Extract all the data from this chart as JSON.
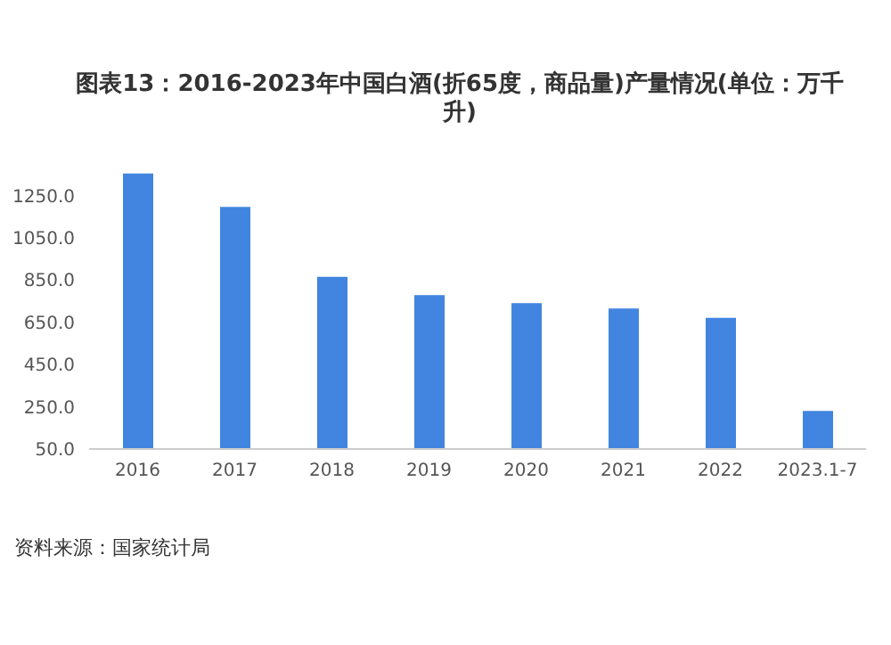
{
  "chart_data": {
    "type": "bar",
    "title": "图表13：2016-2023年中国白酒(折65度，商品量)产量情况(单位：万千升)",
    "categories": [
      "2016",
      "2017",
      "2018",
      "2019",
      "2020",
      "2021",
      "2022",
      "2023.1-7"
    ],
    "values": [
      1355,
      1196,
      865,
      779,
      741,
      716,
      671,
      230
    ],
    "color": "#4285e0",
    "ylim": [
      50,
      1400
    ],
    "yticks": [
      {
        "value": 50,
        "label": "50.0"
      },
      {
        "value": 250,
        "label": "250.0"
      },
      {
        "value": 450,
        "label": "450.0"
      },
      {
        "value": 650,
        "label": "650.0"
      },
      {
        "value": 850,
        "label": "850.0"
      },
      {
        "value": 1050,
        "label": "1050.0"
      },
      {
        "value": 1250,
        "label": "1250.0"
      }
    ],
    "grid": false,
    "annotations": [
      "资料来源：国家统计局"
    ]
  }
}
